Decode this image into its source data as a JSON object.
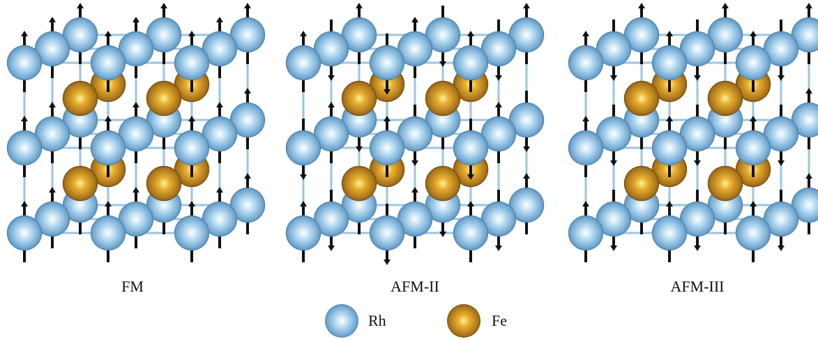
{
  "panels": [
    {
      "label": "FM"
    },
    {
      "label": "AFM-II"
    },
    {
      "label": "AFM-III"
    }
  ],
  "legend": [
    {
      "label": "Rh"
    },
    {
      "label": "Fe"
    }
  ]
}
